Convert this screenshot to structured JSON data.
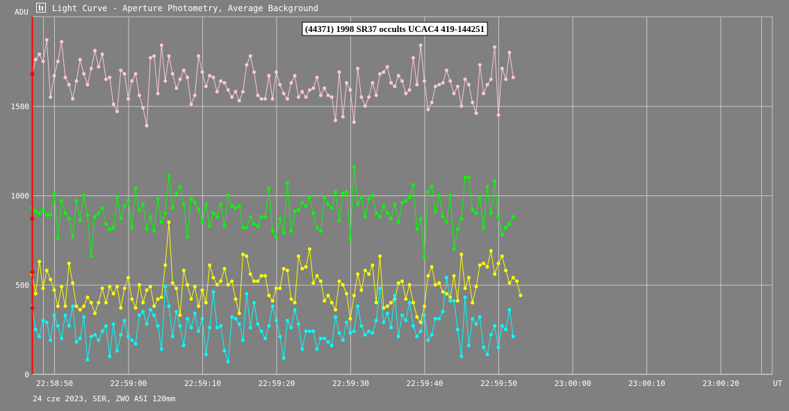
{
  "window": {
    "title": "Light Curve - Aperture Photometry, Average Background",
    "icon": "chart-window-icon"
  },
  "footer": "24 cze 2023, SER, ZWO ASI 120mm",
  "chart_data": {
    "type": "line",
    "title": "(44371) 1998 SR37 occults UCAC4 419-144251",
    "xlabel": "UT",
    "ylabel": "ADU",
    "x_start": "22:58:47",
    "x_step_seconds": 0.5,
    "x_ticks": [
      "22:58:50",
      "22:59:00",
      "22:59:10",
      "22:59:20",
      "22:59:30",
      "22:59:40",
      "22:59:50",
      "23:00:00",
      "23:00:10",
      "23:00:20"
    ],
    "y_ticks": [
      0,
      500,
      1000,
      1500
    ],
    "xlim": [
      "22:58:47",
      "23:00:27"
    ],
    "ylim": [
      0,
      2000
    ],
    "grid": true,
    "background_color": "#808080",
    "grid_color": "#c8c8c8",
    "cursor_color": "#ff0000",
    "series": [
      {
        "color": "#ffc8d8",
        "values": [
          1680,
          1760,
          1790,
          1750,
          1870,
          1550,
          1670,
          1750,
          1860,
          1660,
          1620,
          1540,
          1640,
          1760,
          1680,
          1620,
          1710,
          1810,
          1720,
          1790,
          1650,
          1660,
          1510,
          1470,
          1700,
          1680,
          1540,
          1640,
          1680,
          1560,
          1490,
          1390,
          1770,
          1780,
          1570,
          1840,
          1640,
          1780,
          1680,
          1600,
          1650,
          1700,
          1660,
          1510,
          1560,
          1780,
          1690,
          1610,
          1670,
          1660,
          1580,
          1640,
          1630,
          1590,
          1550,
          1580,
          1530,
          1580,
          1730,
          1780,
          1690,
          1560,
          1540,
          1540,
          1670,
          1540,
          1690,
          1620,
          1570,
          1540,
          1630,
          1670,
          1550,
          1580,
          1550,
          1590,
          1600,
          1660,
          1560,
          1600,
          1560,
          1550,
          1420,
          1690,
          1440,
          1630,
          1590,
          1410,
          1710,
          1550,
          1500,
          1550,
          1630,
          1560,
          1680,
          1690,
          1720,
          1630,
          1610,
          1670,
          1640,
          1570,
          1590,
          1770,
          1620,
          1840,
          1640,
          1480,
          1520,
          1610,
          1620,
          1630,
          1700,
          1640,
          1570,
          1610,
          1500,
          1650,
          1620,
          1520,
          1460,
          1730,
          1570,
          1620,
          1650,
          1830,
          1450,
          1710,
          1650,
          1800,
          1660
        ]
      },
      {
        "color": "#00ff00",
        "values": [
          930,
          910,
          900,
          920,
          890,
          890,
          1010,
          760,
          970,
          900,
          870,
          770,
          970,
          860,
          1000,
          890,
          660,
          880,
          900,
          930,
          840,
          810,
          820,
          990,
          870,
          940,
          970,
          820,
          1040,
          920,
          950,
          810,
          880,
          800,
          980,
          850,
          900,
          1110,
          930,
          1010,
          1050,
          950,
          770,
          980,
          960,
          920,
          850,
          950,
          830,
          900,
          880,
          950,
          830,
          1000,
          940,
          930,
          940,
          820,
          820,
          880,
          840,
          830,
          880,
          880,
          1040,
          800,
          770,
          870,
          790,
          1070,
          800,
          910,
          920,
          960,
          940,
          990,
          900,
          820,
          800,
          990,
          950,
          930,
          1020,
          860,
          1010,
          1020,
          750,
          1160,
          950,
          990,
          880,
          980,
          1000,
          900,
          880,
          940,
          900,
          870,
          950,
          850,
          960,
          970,
          990,
          1060,
          810,
          870,
          650,
          1020,
          1050,
          910,
          1000,
          880,
          850,
          1000,
          700,
          810,
          870,
          1100,
          1100,
          920,
          900,
          990,
          820,
          1050,
          900,
          1080,
          880,
          780,
          820,
          840,
          880
        ]
      },
      {
        "color": "#ffff00",
        "values": [
          560,
          450,
          630,
          480,
          580,
          530,
          470,
          380,
          490,
          380,
          620,
          510,
          380,
          360,
          380,
          430,
          400,
          340,
          400,
          480,
          400,
          490,
          450,
          490,
          370,
          480,
          540,
          420,
          370,
          500,
          400,
          470,
          490,
          380,
          420,
          430,
          610,
          850,
          510,
          480,
          330,
          580,
          500,
          420,
          490,
          380,
          470,
          400,
          610,
          540,
          500,
          520,
          590,
          500,
          520,
          420,
          340,
          670,
          660,
          560,
          520,
          520,
          550,
          550,
          440,
          410,
          480,
          480,
          590,
          580,
          420,
          400,
          660,
          590,
          600,
          700,
          510,
          550,
          520,
          410,
          440,
          400,
          360,
          520,
          500,
          450,
          310,
          440,
          560,
          470,
          580,
          560,
          610,
          400,
          660,
          370,
          380,
          400,
          420,
          510,
          520,
          420,
          500,
          400,
          320,
          290,
          380,
          550,
          600,
          500,
          510,
          460,
          450,
          430,
          550,
          410,
          670,
          480,
          540,
          400,
          490,
          610,
          620,
          600,
          690,
          560,
          620,
          660,
          580,
          510,
          540,
          520,
          440
        ]
      },
      {
        "color": "#00ffff",
        "values": [
          380,
          250,
          210,
          300,
          290,
          190,
          330,
          270,
          200,
          330,
          270,
          380,
          180,
          200,
          320,
          80,
          210,
          220,
          190,
          240,
          270,
          100,
          280,
          130,
          220,
          300,
          210,
          190,
          170,
          330,
          350,
          280,
          360,
          330,
          270,
          140,
          490,
          380,
          210,
          350,
          270,
          160,
          310,
          260,
          340,
          240,
          310,
          110,
          260,
          460,
          260,
          270,
          130,
          70,
          320,
          310,
          280,
          190,
          450,
          260,
          400,
          280,
          240,
          200,
          270,
          380,
          300,
          210,
          90,
          300,
          260,
          360,
          280,
          140,
          240,
          240,
          240,
          140,
          200,
          200,
          180,
          160,
          320,
          230,
          190,
          290,
          230,
          240,
          380,
          270,
          220,
          240,
          230,
          300,
          480,
          290,
          340,
          260,
          440,
          210,
          330,
          300,
          400,
          270,
          210,
          240,
          330,
          190,
          220,
          310,
          310,
          350,
          540,
          410,
          410,
          250,
          100,
          430,
          160,
          310,
          280,
          320,
          150,
          110,
          220,
          270,
          150,
          270,
          250,
          360,
          210
        ]
      }
    ],
    "cursor_markers": [
      1680,
      870,
      570,
      370
    ]
  }
}
